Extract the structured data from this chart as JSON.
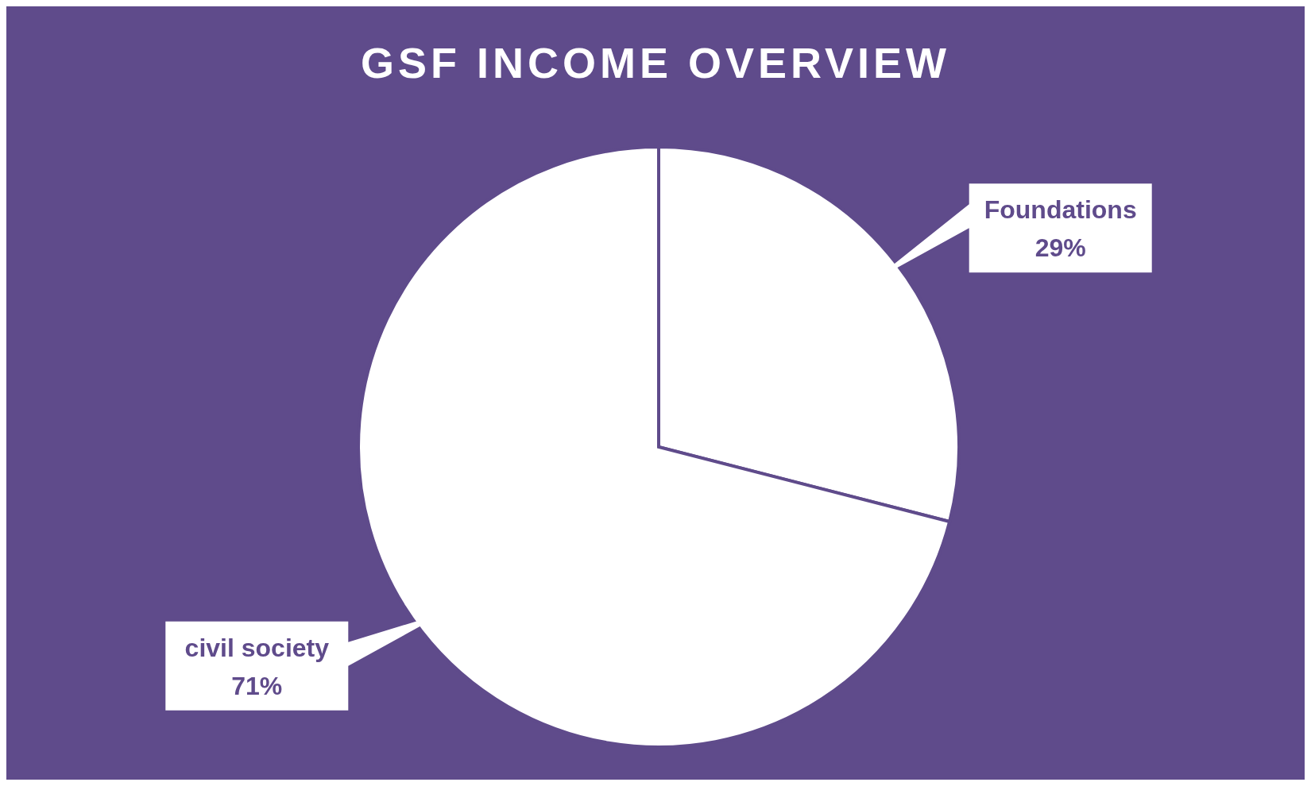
{
  "chart_data": {
    "type": "pie",
    "title": "GSF INCOME OVERVIEW",
    "categories": [
      "Foundations",
      "civil society"
    ],
    "values": [
      29,
      71
    ],
    "value_labels": [
      "29%",
      "71%"
    ],
    "colors": [
      "#ffffff",
      "#ffffff"
    ],
    "legend": false
  }
}
